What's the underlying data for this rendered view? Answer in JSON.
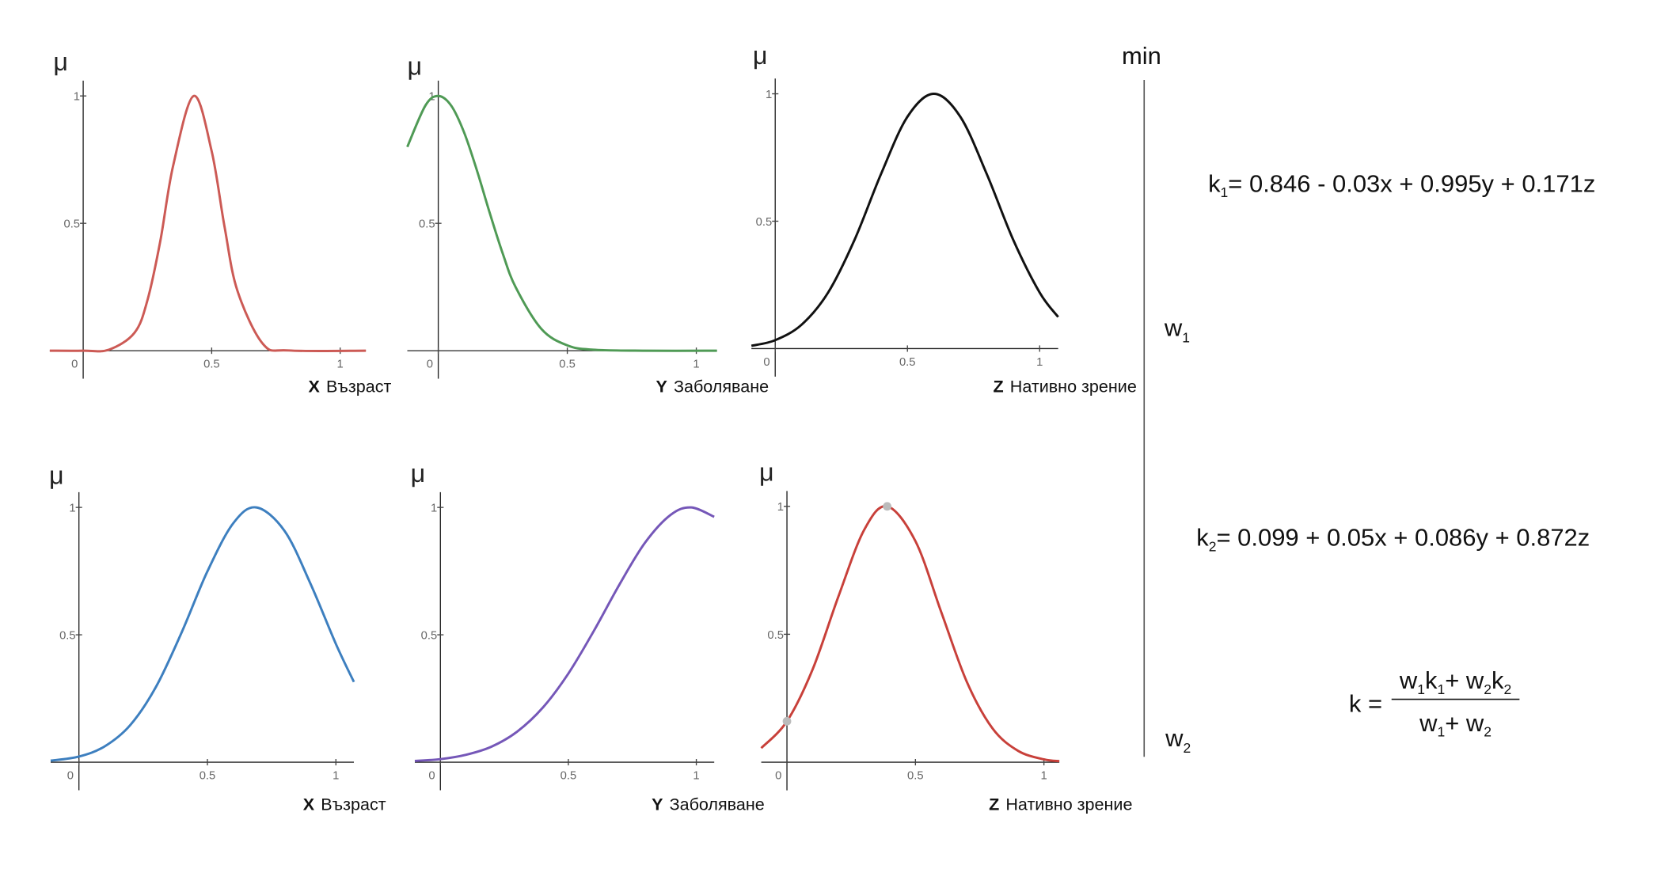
{
  "chart_data": [
    {
      "type": "line",
      "color": "#cc5a55",
      "y_label": "μ",
      "x_label_var": "X",
      "x_label_text": "Възраст",
      "xlim": [
        -0.13,
        1.1
      ],
      "ylim": [
        -0.11,
        1.06
      ],
      "xticks": [
        0,
        0.5,
        1
      ],
      "yticks": [
        0.5,
        1
      ],
      "x": [
        -0.13,
        0,
        0.1,
        0.2,
        0.25,
        0.3,
        0.35,
        0.43,
        0.5,
        0.55,
        0.6,
        0.7,
        0.8,
        1.1
      ],
      "values": [
        0,
        0,
        0.004,
        0.071,
        0.198,
        0.43,
        0.726,
        1,
        0.783,
        0.487,
        0.236,
        0.026,
        0.001,
        0
      ]
    },
    {
      "type": "line",
      "color": "#4f9a55",
      "y_label": "μ",
      "x_label_var": "Y",
      "x_label_text": "Заболяване",
      "xlim": [
        -0.12,
        1.08
      ],
      "ylim": [
        -0.11,
        1.06
      ],
      "xticks": [
        0,
        0.5,
        1
      ],
      "yticks": [
        0.5,
        1
      ],
      "x": [
        -0.12,
        -0.05,
        0,
        0.05,
        0.1,
        0.15,
        0.2,
        0.25,
        0.3,
        0.4,
        0.5,
        0.6,
        0.8,
        1.08
      ],
      "values": [
        0.8,
        0.962,
        1,
        0.962,
        0.857,
        0.707,
        0.539,
        0.381,
        0.249,
        0.085,
        0.021,
        0.004,
        0,
        0
      ]
    },
    {
      "type": "line",
      "color": "#111111",
      "y_label": "μ",
      "x_label_var": "Z",
      "x_label_text": "Нативно зрение",
      "xlim": [
        -0.09,
        1.07
      ],
      "ylim": [
        -0.11,
        1.06
      ],
      "xticks": [
        0,
        0.5,
        1
      ],
      "yticks": [
        0.5,
        1
      ],
      "x": [
        -0.09,
        0,
        0.1,
        0.2,
        0.3,
        0.4,
        0.5,
        0.6,
        0.7,
        0.8,
        0.9,
        1.0,
        1.07
      ],
      "values": [
        0.011,
        0.033,
        0.094,
        0.22,
        0.427,
        0.685,
        0.91,
        1,
        0.91,
        0.685,
        0.427,
        0.22,
        0.124
      ]
    },
    {
      "type": "line",
      "color": "#3d7fbf",
      "y_label": "μ",
      "x_label_var": "X",
      "x_label_text": "Възраст",
      "xlim": [
        -0.11,
        1.07
      ],
      "ylim": [
        -0.11,
        1.06
      ],
      "xticks": [
        0,
        0.5,
        1
      ],
      "yticks": [
        0.5,
        1
      ],
      "x": [
        -0.11,
        0,
        0.1,
        0.2,
        0.3,
        0.4,
        0.5,
        0.6,
        0.69,
        0.8,
        0.9,
        1.0,
        1.07
      ],
      "values": [
        0.006,
        0.022,
        0.062,
        0.146,
        0.296,
        0.51,
        0.749,
        0.937,
        1,
        0.908,
        0.703,
        0.464,
        0.315
      ]
    },
    {
      "type": "line",
      "color": "#7557b8",
      "y_label": "μ",
      "x_label_var": "Y",
      "x_label_text": "Заболяване",
      "xlim": [
        -0.1,
        1.07
      ],
      "ylim": [
        -0.11,
        1.06
      ],
      "xticks": [
        0,
        0.5,
        1
      ],
      "yticks": [
        0.5,
        1
      ],
      "x": [
        -0.1,
        0,
        0.1,
        0.2,
        0.3,
        0.4,
        0.5,
        0.6,
        0.7,
        0.8,
        0.9,
        0.98,
        1.07
      ],
      "values": [
        0.005,
        0.012,
        0.029,
        0.061,
        0.12,
        0.214,
        0.348,
        0.516,
        0.698,
        0.862,
        0.971,
        1,
        0.963
      ]
    },
    {
      "type": "line",
      "color": "#c8403a",
      "y_label": "μ",
      "x_label_var": "Z",
      "x_label_text": "Нативно зрение",
      "xlim": [
        -0.1,
        1.06
      ],
      "ylim": [
        -0.11,
        1.06
      ],
      "xticks": [
        0,
        0.5,
        1
      ],
      "yticks": [
        0.5,
        1
      ],
      "x": [
        -0.1,
        0,
        0.1,
        0.2,
        0.3,
        0.39,
        0.5,
        0.6,
        0.7,
        0.8,
        0.9,
        1.0,
        1.06
      ],
      "values": [
        0.055,
        0.16,
        0.363,
        0.647,
        0.907,
        1,
        0.864,
        0.588,
        0.314,
        0.132,
        0.044,
        0.011,
        0.004
      ],
      "highlight_x": [
        0,
        0.39
      ],
      "highlight_values": [
        0.16,
        1
      ]
    }
  ],
  "side": {
    "min": "min",
    "w1": {
      "base": "w",
      "sub": "1"
    },
    "w2": {
      "base": "w",
      "sub": "2"
    },
    "k1": {
      "base": "k",
      "sub": "1",
      "rest": "= 0.846 - 0.03x + 0.995y + 0.171z"
    },
    "k2": {
      "base": "k",
      "sub": "2",
      "rest": "= 0.099 + 0.05x + 0.086y + 0.872z"
    },
    "k": {
      "lhs": "k =",
      "numerator": [
        "w",
        "1",
        "k",
        "1",
        "+ w",
        "2",
        "k",
        "2"
      ],
      "denominator": [
        "w",
        "1",
        "+ w",
        "2"
      ]
    }
  }
}
